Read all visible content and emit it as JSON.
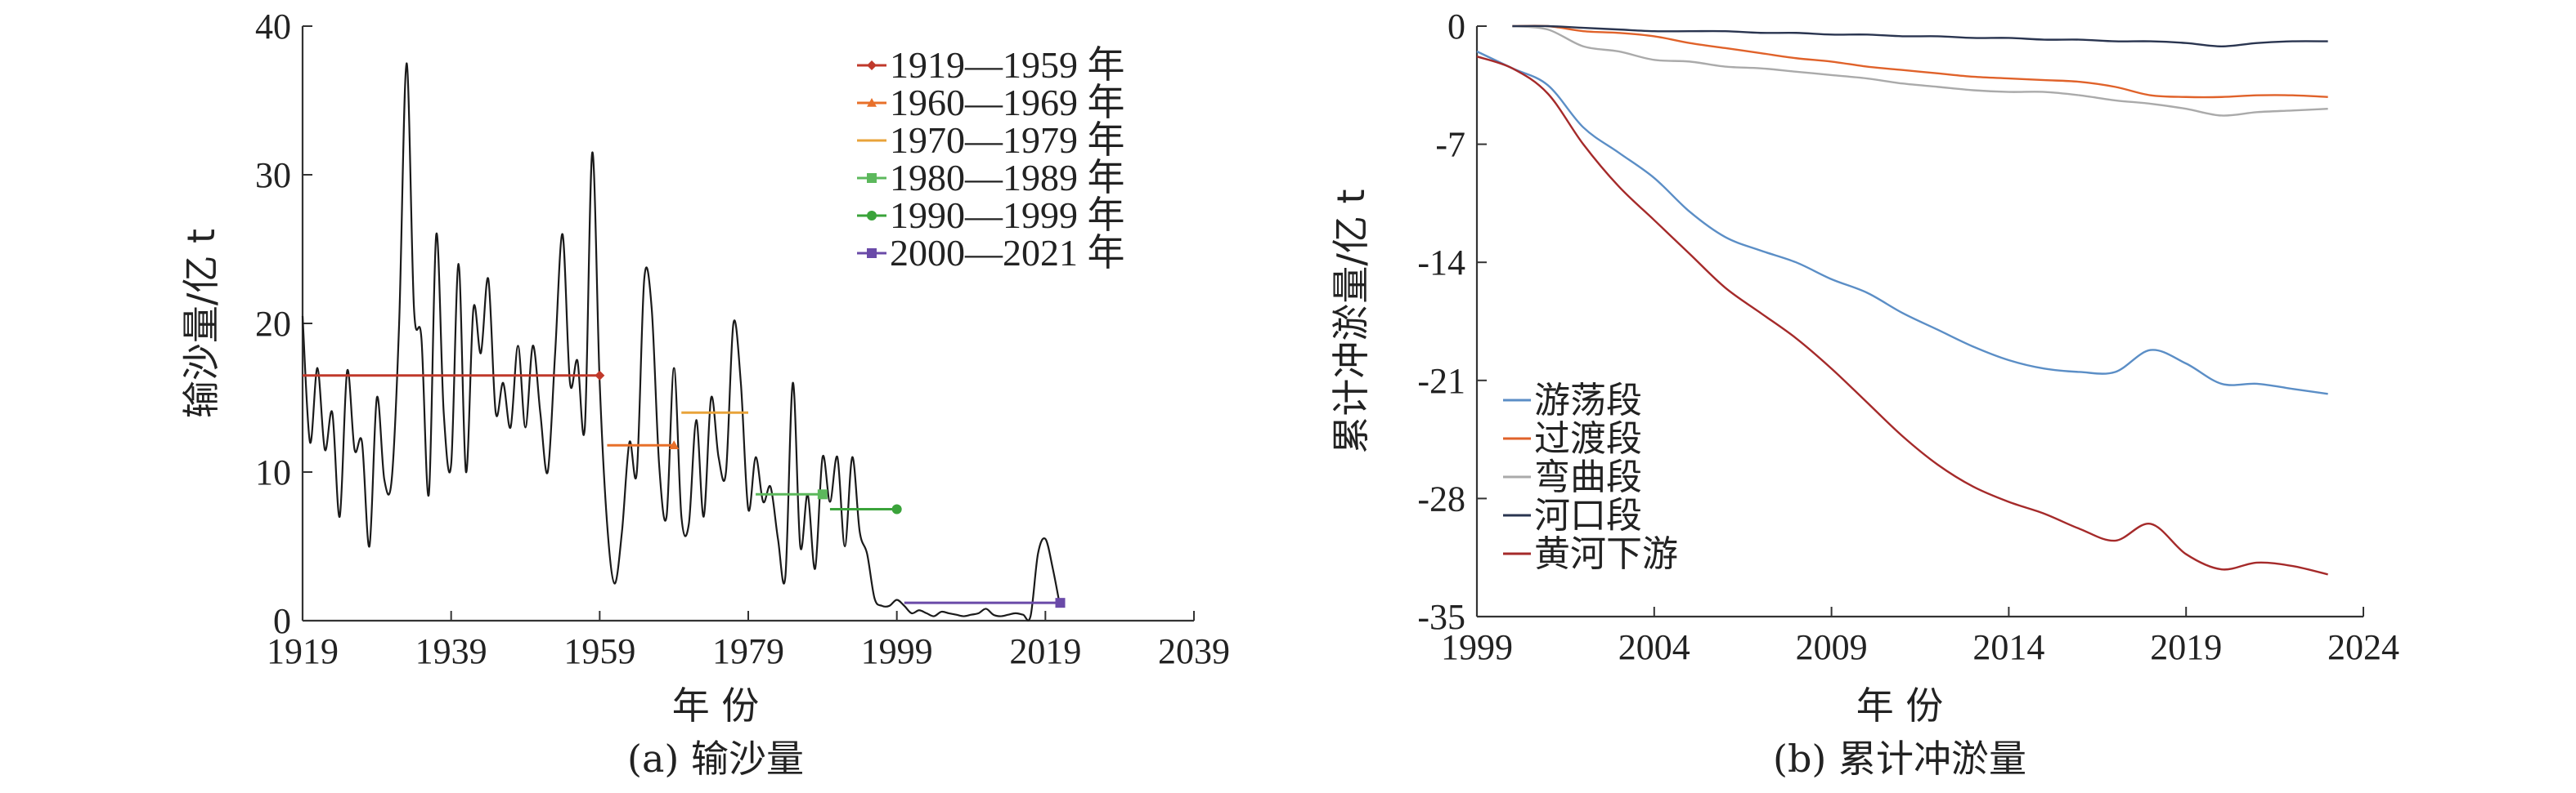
{
  "chart_data": [
    {
      "type": "line",
      "caption": "(a) 输沙量",
      "xlabel": "年 份",
      "ylabel": "输沙量/亿 t",
      "xlim": [
        1919,
        2039
      ],
      "ylim": [
        0,
        40
      ],
      "xticks": [
        1919,
        1939,
        1959,
        1979,
        1999,
        2019,
        2039
      ],
      "yticks": [
        0,
        10,
        20,
        30,
        40
      ],
      "grid": false,
      "legend_position": "top-right",
      "annual_series": {
        "x": [
          1919,
          1920,
          1921,
          1922,
          1923,
          1924,
          1925,
          1926,
          1927,
          1928,
          1929,
          1930,
          1931,
          1932,
          1933,
          1934,
          1935,
          1936,
          1937,
          1938,
          1939,
          1940,
          1941,
          1942,
          1943,
          1944,
          1945,
          1946,
          1947,
          1948,
          1949,
          1950,
          1951,
          1952,
          1953,
          1954,
          1955,
          1956,
          1957,
          1958,
          1959,
          1960,
          1961,
          1962,
          1963,
          1964,
          1965,
          1966,
          1967,
          1968,
          1969,
          1970,
          1971,
          1972,
          1973,
          1974,
          1975,
          1976,
          1977,
          1978,
          1979,
          1980,
          1981,
          1982,
          1983,
          1984,
          1985,
          1986,
          1987,
          1988,
          1989,
          1990,
          1991,
          1992,
          1993,
          1994,
          1995,
          1996,
          1997,
          1998,
          1999,
          2000,
          2001,
          2002,
          2003,
          2004,
          2005,
          2006,
          2007,
          2008,
          2009,
          2010,
          2011,
          2012,
          2013,
          2014,
          2015,
          2016,
          2017,
          2018,
          2019,
          2020,
          2021
        ],
        "y": [
          20.5,
          12,
          17,
          11.5,
          14,
          7,
          16.8,
          11.5,
          12,
          5,
          15,
          9.5,
          9.5,
          20,
          37.5,
          21,
          19,
          8.5,
          26,
          14,
          10.5,
          24,
          10,
          21,
          18,
          23,
          14,
          16,
          13,
          18.5,
          13,
          18.5,
          14,
          10,
          18,
          26,
          16,
          17.5,
          13,
          31.5,
          16,
          6.5,
          2.5,
          6,
          12,
          10,
          23,
          21,
          10.5,
          7,
          17,
          7,
          6.5,
          13.5,
          7,
          15,
          11,
          10,
          20,
          16,
          7.5,
          11,
          8,
          9,
          5.5,
          3,
          16,
          5,
          8.5,
          3.5,
          11,
          8,
          11,
          5,
          11,
          6,
          4.5,
          1.5,
          1,
          1,
          1.4,
          1,
          0.5,
          0.7,
          0.5,
          0.3,
          0.6,
          0.5,
          0.4,
          0.3,
          0.4,
          0.5,
          0.8,
          0.4,
          0.3,
          0.4,
          0.5,
          0.4,
          0.3,
          4.5,
          5.5,
          3.5,
          0.9
        ]
      },
      "period_means": [
        {
          "name": "1919—1959 年",
          "x": [
            1919,
            1959
          ],
          "y": 16.5,
          "color": "#c0392b",
          "marker": "diamond"
        },
        {
          "name": "1960—1969 年",
          "x": [
            1960,
            1969
          ],
          "y": 11.8,
          "color": "#e8702a",
          "marker": "triangle"
        },
        {
          "name": "1970—1979 年",
          "x": [
            1970,
            1979
          ],
          "y": 14.0,
          "color": "#e8a33a",
          "marker": "dash"
        },
        {
          "name": "1980—1989 年",
          "x": [
            1980,
            1989
          ],
          "y": 8.5,
          "color": "#5cb85c",
          "marker": "square"
        },
        {
          "name": "1990—1999 年",
          "x": [
            1990,
            1999
          ],
          "y": 7.5,
          "color": "#3aa33a",
          "marker": "circle"
        },
        {
          "name": "2000—2021 年",
          "x": [
            2000,
            2021
          ],
          "y": 1.2,
          "color": "#6a4aa8",
          "marker": "square"
        }
      ]
    },
    {
      "type": "line",
      "caption": "(b) 累计冲淤量",
      "xlabel": "年 份",
      "ylabel": "累计冲淤量/亿 t",
      "xlim": [
        1999,
        2024
      ],
      "ylim": [
        -35,
        0
      ],
      "xticks": [
        1999,
        2004,
        2009,
        2014,
        2019,
        2024
      ],
      "yticks": [
        0,
        -7,
        -14,
        -21,
        -28,
        -35
      ],
      "grid": false,
      "legend_position": "bottom-left",
      "series": [
        {
          "name": "游荡段",
          "color": "#5b8ec6",
          "x": [
            1999,
            2000,
            2001,
            2002,
            2003,
            2004,
            2005,
            2006,
            2007,
            2008,
            2009,
            2010,
            2011,
            2012,
            2013,
            2014,
            2015,
            2016,
            2017,
            2018,
            2019,
            2020,
            2021,
            2022,
            2023
          ],
          "y": [
            -1.5,
            -2.5,
            -3.5,
            -6,
            -7.5,
            -9,
            -11,
            -12.5,
            -13.3,
            -14,
            -15,
            -15.8,
            -17,
            -18,
            -19,
            -19.8,
            -20.3,
            -20.5,
            -20.5,
            -19.2,
            -20,
            -21.2,
            -21.2,
            -21.5,
            -21.8
          ]
        },
        {
          "name": "过渡段",
          "color": "#e0622a",
          "x": [
            2000,
            2001,
            2002,
            2003,
            2004,
            2005,
            2006,
            2007,
            2008,
            2009,
            2010,
            2011,
            2012,
            2013,
            2014,
            2015,
            2016,
            2017,
            2018,
            2019,
            2020,
            2021,
            2022,
            2023
          ],
          "y": [
            0,
            0,
            -0.3,
            -0.4,
            -0.6,
            -1,
            -1.3,
            -1.6,
            -1.9,
            -2.1,
            -2.4,
            -2.6,
            -2.8,
            -3,
            -3.1,
            -3.2,
            -3.3,
            -3.6,
            -4.1,
            -4.2,
            -4.2,
            -4.1,
            -4.1,
            -4.2
          ]
        },
        {
          "name": "弯曲段",
          "color": "#aaaaaa",
          "x": [
            2000,
            2001,
            2002,
            2003,
            2004,
            2005,
            2006,
            2007,
            2008,
            2009,
            2010,
            2011,
            2012,
            2013,
            2014,
            2015,
            2016,
            2017,
            2018,
            2019,
            2020,
            2021,
            2022,
            2023
          ],
          "y": [
            0,
            -0.2,
            -1.2,
            -1.5,
            -2,
            -2.1,
            -2.4,
            -2.5,
            -2.7,
            -2.9,
            -3.1,
            -3.4,
            -3.6,
            -3.8,
            -3.9,
            -3.9,
            -4.1,
            -4.4,
            -4.6,
            -4.9,
            -5.3,
            -5.1,
            -5,
            -4.9
          ]
        },
        {
          "name": "河口段",
          "color": "#2a3550",
          "x": [
            2000,
            2001,
            2002,
            2003,
            2004,
            2005,
            2006,
            2007,
            2008,
            2009,
            2010,
            2011,
            2012,
            2013,
            2014,
            2015,
            2016,
            2017,
            2018,
            2019,
            2020,
            2021,
            2022,
            2023
          ],
          "y": [
            0,
            0,
            -0.1,
            -0.2,
            -0.3,
            -0.3,
            -0.3,
            -0.4,
            -0.4,
            -0.5,
            -0.5,
            -0.6,
            -0.6,
            -0.7,
            -0.7,
            -0.8,
            -0.8,
            -0.9,
            -0.9,
            -1,
            -1.2,
            -1,
            -0.9,
            -0.9
          ]
        },
        {
          "name": "黄河下游",
          "color": "#a52a2a",
          "x": [
            1999,
            2000,
            2001,
            2002,
            2003,
            2004,
            2005,
            2006,
            2007,
            2008,
            2009,
            2010,
            2011,
            2012,
            2013,
            2014,
            2015,
            2016,
            2017,
            2018,
            2019,
            2020,
            2021,
            2022,
            2023
          ],
          "y": [
            -1.8,
            -2.5,
            -4,
            -7,
            -9.5,
            -11.5,
            -13.5,
            -15.5,
            -17,
            -18.5,
            -20.3,
            -22.3,
            -24.3,
            -26,
            -27.3,
            -28.2,
            -28.9,
            -29.8,
            -30.5,
            -29.5,
            -31.3,
            -32.2,
            -31.8,
            -32,
            -32.5
          ]
        }
      ]
    }
  ]
}
